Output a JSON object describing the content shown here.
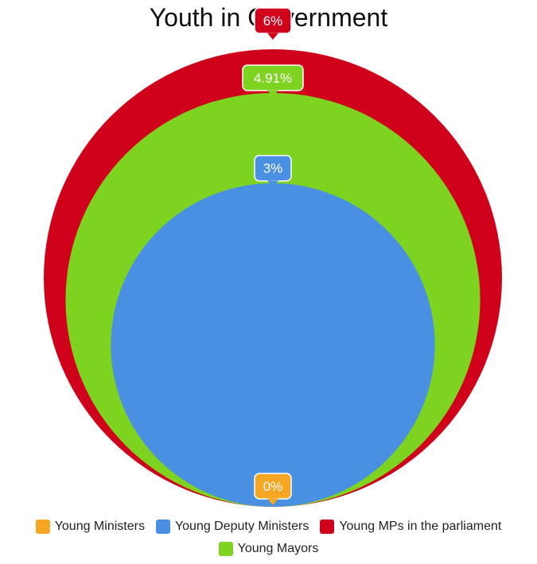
{
  "chart_data": {
    "type": "bubble-nested",
    "title": "Youth in Government",
    "series": [
      {
        "name": "Young MPs in the parliament",
        "value": 6,
        "label": "6%",
        "color": "#d0021b"
      },
      {
        "name": "Young Mayors",
        "value": 4.91,
        "label": "4.91%",
        "color": "#7ed321"
      },
      {
        "name": "Young Deputy Ministers",
        "value": 3,
        "label": "3%",
        "color": "#4a90e2"
      },
      {
        "name": "Young Ministers",
        "value": 0,
        "label": "0%",
        "color": "#f5a623"
      }
    ],
    "legend": {
      "position": "bottom",
      "items": [
        {
          "name": "Young Ministers",
          "color": "#f5a623"
        },
        {
          "name": "Young Deputy Ministers",
          "color": "#4a90e2"
        },
        {
          "name": "Young MPs in the parliament",
          "color": "#d0021b"
        },
        {
          "name": "Young Mayors",
          "color": "#7ed321"
        }
      ]
    }
  }
}
